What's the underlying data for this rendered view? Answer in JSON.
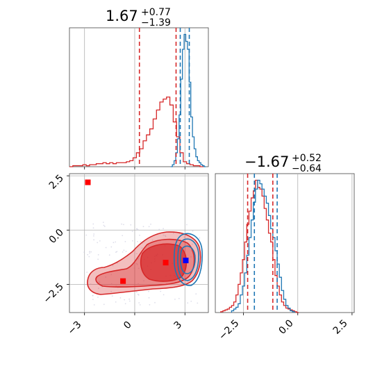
{
  "colors": {
    "red": "#d62728",
    "blue": "#1f77b4",
    "grid": "#b0b0b0",
    "marker_red": "#ff0000",
    "marker_blue": "#0000ff"
  },
  "chart_data": [
    {
      "type": "histogram",
      "panel": "p1-marginal",
      "title": {
        "value": "1.67",
        "upper": "+0.77",
        "lower": "−1.39"
      },
      "xlim": [
        -3.9,
        4.4
      ],
      "quantile_lines_red": [
        0.28,
        2.47
      ],
      "quantile_lines_blue": [
        2.72,
        3.26
      ],
      "series": [
        {
          "color": "red",
          "x": [
            -3.8,
            -3.6,
            -3.4,
            -3.2,
            -3.0,
            -2.8,
            -2.6,
            -2.4,
            -2.2,
            -2.0,
            -1.8,
            -1.6,
            -1.4,
            -1.2,
            -1.0,
            -0.8,
            -0.6,
            -0.4,
            -0.2,
            0.0,
            0.2,
            0.4,
            0.6,
            0.8,
            1.0,
            1.2,
            1.4,
            1.6,
            1.8,
            2.0,
            2.2,
            2.4,
            2.6,
            2.8,
            3.0,
            3.2,
            3.4,
            3.6,
            3.8,
            4.0
          ],
          "values": [
            0,
            1,
            1,
            1,
            2,
            1,
            2,
            2,
            3,
            3,
            4,
            3,
            4,
            3,
            4,
            4,
            4,
            5,
            6,
            9,
            14,
            18,
            26,
            32,
            38,
            48,
            57,
            65,
            68,
            70,
            62,
            45,
            30,
            14,
            5,
            3,
            2,
            1,
            1,
            0
          ]
        },
        {
          "color": "blue",
          "x": [
            2.2,
            2.3,
            2.4,
            2.5,
            2.6,
            2.7,
            2.8,
            2.9,
            3.0,
            3.1,
            3.2,
            3.3,
            3.4,
            3.5,
            3.6,
            3.7,
            3.8,
            3.9,
            4.0,
            4.1,
            4.2
          ],
          "values": [
            0,
            2,
            6,
            14,
            28,
            52,
            88,
            118,
            133,
            126,
            118,
            85,
            50,
            30,
            18,
            10,
            6,
            4,
            2,
            1,
            0
          ]
        }
      ]
    },
    {
      "type": "contour",
      "panel": "p1-vs-p2",
      "xlim": [
        -3.9,
        4.4
      ],
      "ylim": [
        -3.8,
        2.6
      ],
      "xticks": [
        "−3",
        "0",
        "3"
      ],
      "yticks": [
        "−2.5",
        "0.0",
        "2.5"
      ],
      "markers": [
        {
          "x": -2.8,
          "y": 2.2,
          "color": "marker_red"
        },
        {
          "x": -0.7,
          "y": -2.35,
          "color": "marker_red"
        },
        {
          "x": 1.85,
          "y": -1.5,
          "color": "marker_red"
        },
        {
          "x": 3.05,
          "y": -1.4,
          "color": "marker_blue"
        }
      ]
    },
    {
      "type": "histogram",
      "panel": "p2-marginal",
      "title": {
        "value": "−1.67",
        "upper": "+0.52",
        "lower": "−0.64"
      },
      "xlim": [
        -3.8,
        2.6
      ],
      "xticks": [
        "−2.5",
        "0.0",
        "2.5"
      ],
      "quantile_lines_red": [
        -2.31,
        -1.15
      ],
      "quantile_lines_blue": [
        -2.0,
        -0.95
      ],
      "series": [
        {
          "color": "red",
          "x": [
            -3.5,
            -3.4,
            -3.3,
            -3.2,
            -3.1,
            -3.0,
            -2.9,
            -2.8,
            -2.7,
            -2.6,
            -2.5,
            -2.4,
            -2.3,
            -2.2,
            -2.1,
            -2.0,
            -1.9,
            -1.8,
            -1.7,
            -1.6,
            -1.5,
            -1.4,
            -1.3,
            -1.2,
            -1.1,
            -1.0,
            -0.9,
            -0.8,
            -0.7,
            -0.6,
            -0.5,
            -0.4,
            -0.3,
            -0.2,
            -0.1,
            0.0
          ],
          "values": [
            1,
            2,
            3,
            4,
            6,
            8,
            12,
            20,
            32,
            45,
            60,
            80,
            100,
            115,
            130,
            138,
            150,
            142,
            140,
            132,
            118,
            105,
            90,
            80,
            60,
            42,
            30,
            20,
            12,
            8,
            5,
            4,
            3,
            2,
            1,
            0
          ]
        },
        {
          "color": "blue",
          "x": [
            -3.0,
            -2.9,
            -2.8,
            -2.7,
            -2.6,
            -2.5,
            -2.4,
            -2.3,
            -2.2,
            -2.1,
            -2.0,
            -1.9,
            -1.8,
            -1.7,
            -1.6,
            -1.5,
            -1.4,
            -1.3,
            -1.2,
            -1.1,
            -1.0,
            -0.9,
            -0.8,
            -0.7,
            -0.6,
            -0.5,
            -0.4,
            -0.3,
            -0.2
          ],
          "values": [
            2,
            4,
            6,
            10,
            20,
            30,
            45,
            65,
            85,
            105,
            125,
            140,
            150,
            146,
            140,
            132,
            124,
            110,
            95,
            85,
            70,
            55,
            40,
            25,
            15,
            8,
            5,
            2,
            1
          ]
        }
      ]
    }
  ]
}
